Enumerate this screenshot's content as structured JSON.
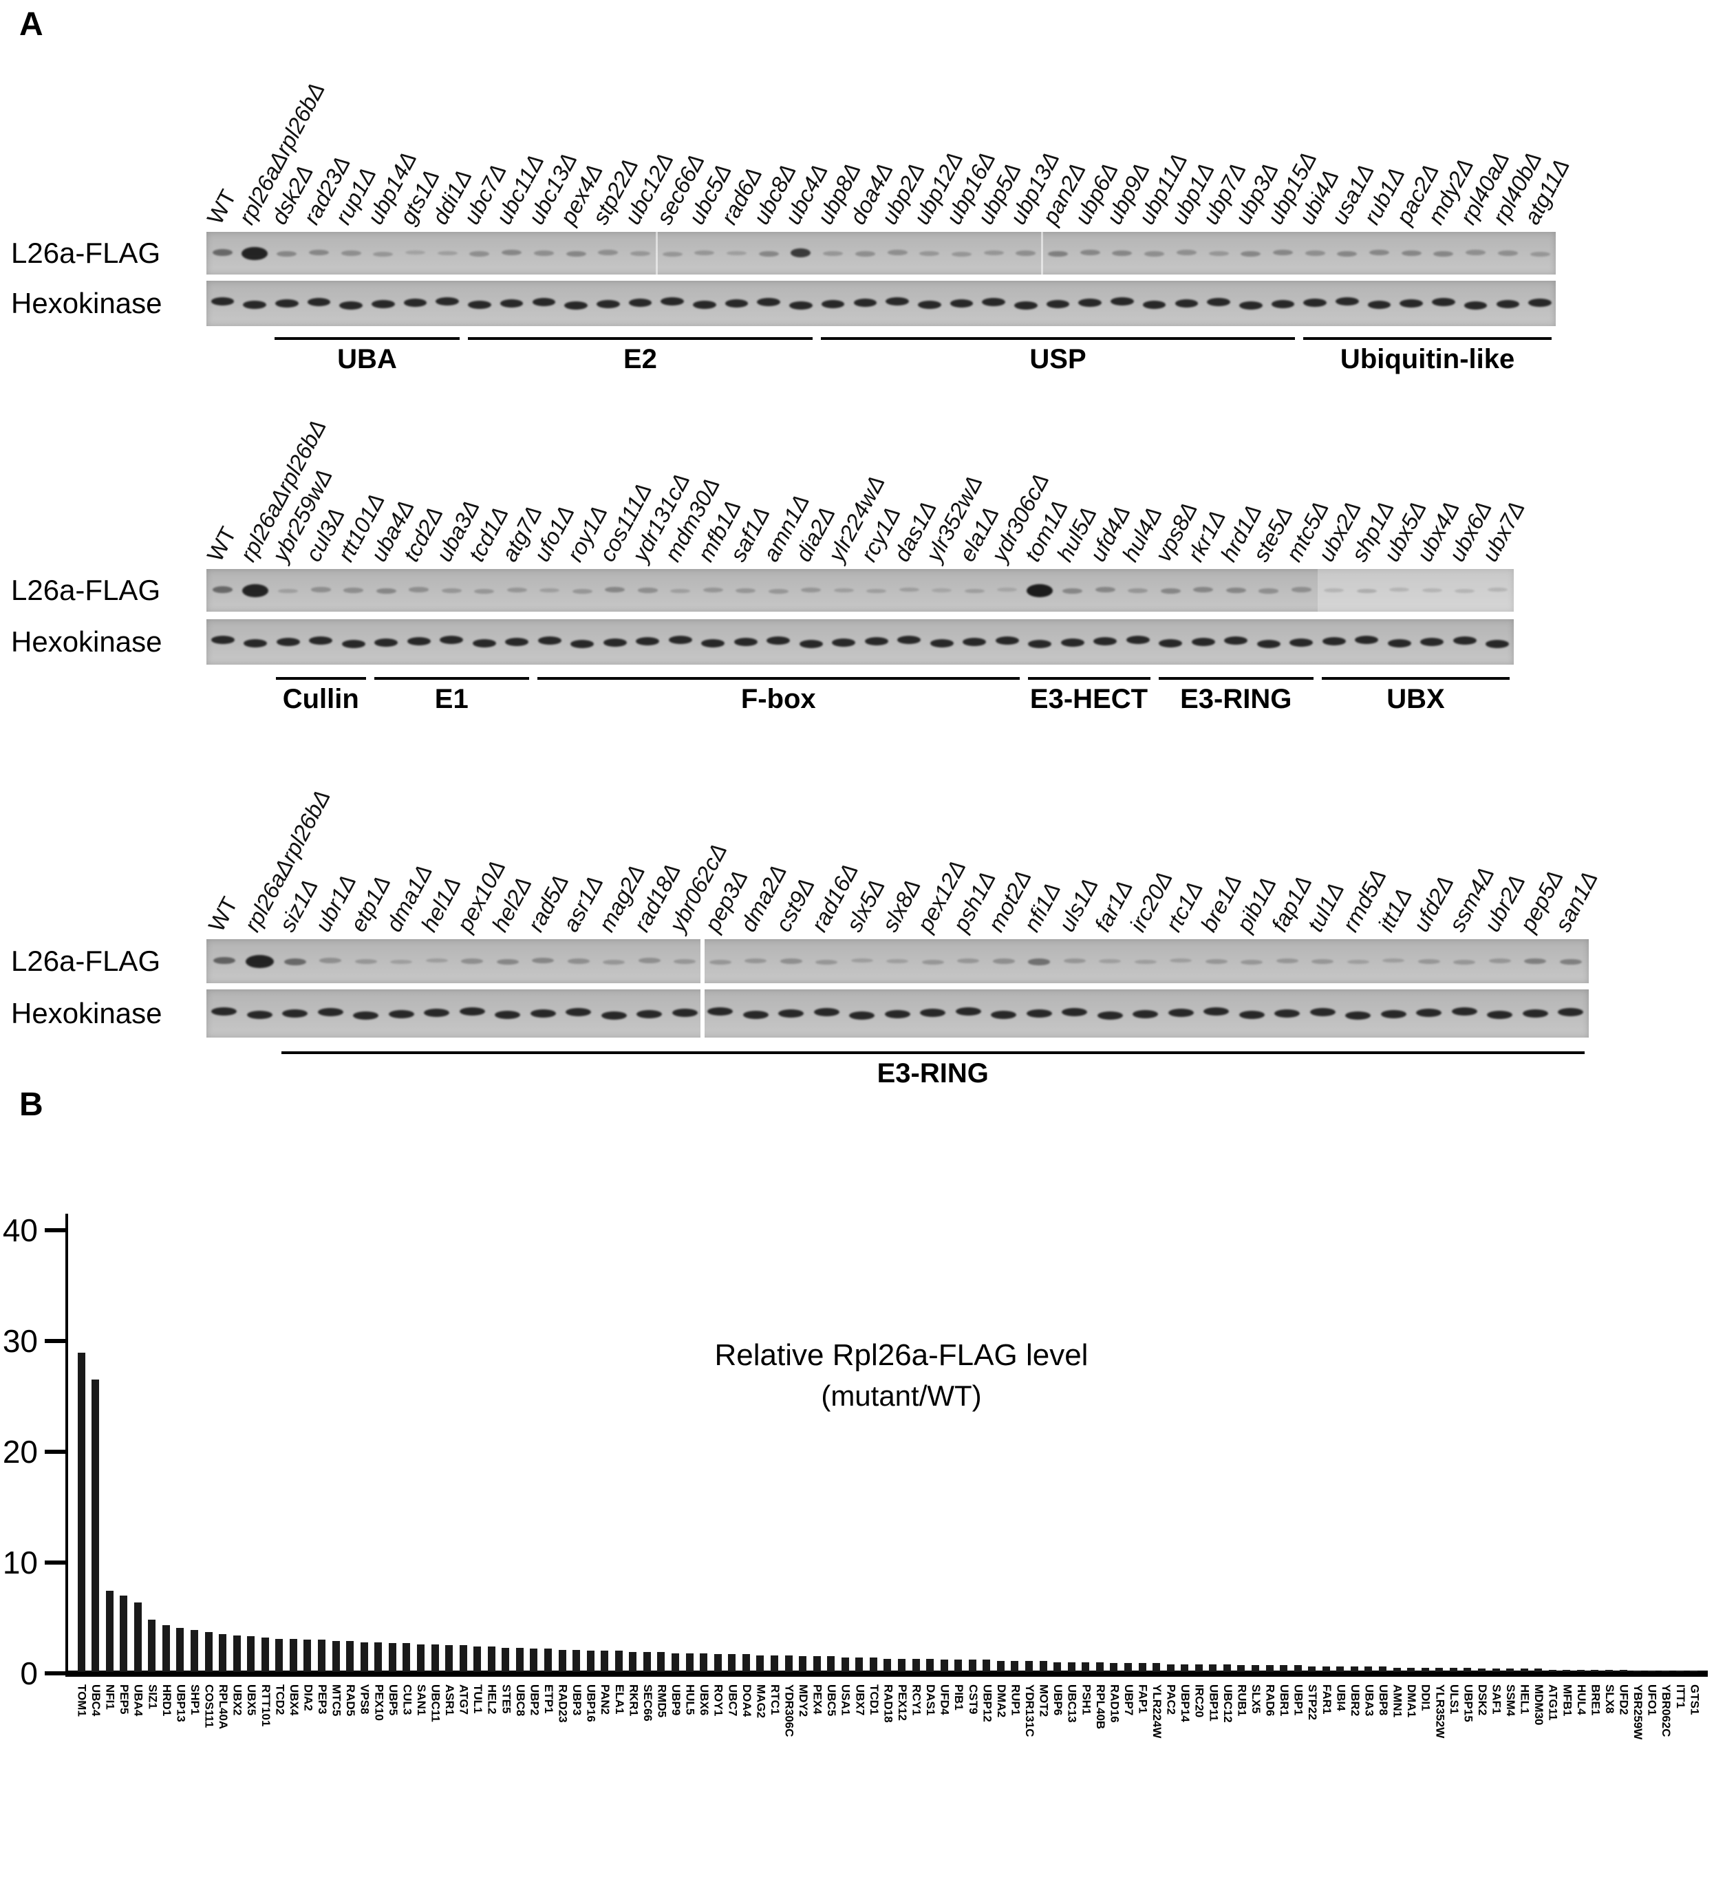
{
  "figure": {
    "panel_a_label": "A",
    "panel_b_label": "B"
  },
  "panel_a": {
    "row_label_l26a": "L26a-FLAG",
    "row_label_hexokinase": "Hexokinase",
    "blots": [
      {
        "lanes": [
          "WT",
          "rpl26aΔrpl26bΔ",
          "dsk2Δ",
          "rad23Δ",
          "rup1Δ",
          "ubp14Δ",
          "gts1Δ",
          "ddi1Δ",
          "ubc7Δ",
          "ubc11Δ",
          "ubc13Δ",
          "pex4Δ",
          "stp22Δ",
          "ubc12Δ",
          "sec66Δ",
          "ubc5Δ",
          "rad6Δ",
          "ubc8Δ",
          "ubc4Δ",
          "ubp8Δ",
          "doa4Δ",
          "ubp2Δ",
          "ubp12Δ",
          "ubp16Δ",
          "ubp5Δ",
          "ubp13Δ",
          "pan2Δ",
          "ubp6Δ",
          "ubp9Δ",
          "ubp11Δ",
          "ubp1Δ",
          "ubp7Δ",
          "ubp3Δ",
          "ubp15Δ",
          "ubi4Δ",
          "usa1Δ",
          "rub1Δ",
          "pac2Δ",
          "mdy2Δ",
          "rpl40aΔ",
          "rpl40bΔ",
          "atg11Δ"
        ],
        "l26a_band_intensities": [
          0.5,
          0.95,
          0.3,
          0.3,
          0.25,
          0.2,
          0.12,
          0.15,
          0.25,
          0.3,
          0.25,
          0.3,
          0.25,
          0.2,
          0.2,
          0.2,
          0.15,
          0.3,
          0.8,
          0.2,
          0.25,
          0.25,
          0.2,
          0.2,
          0.2,
          0.25,
          0.35,
          0.3,
          0.3,
          0.25,
          0.25,
          0.2,
          0.3,
          0.3,
          0.25,
          0.3,
          0.3,
          0.3,
          0.3,
          0.25,
          0.25,
          0.2
        ],
        "groups": [
          {
            "label": "UBA",
            "from": 2,
            "to": 7
          },
          {
            "label": "E2",
            "from": 8,
            "to": 18
          },
          {
            "label": "USP",
            "from": 19,
            "to": 33
          },
          {
            "label": "Ubiquitin-like",
            "from": 34,
            "to": 41
          }
        ]
      },
      {
        "lanes": [
          "WT",
          "rpl26aΔrpl26bΔ",
          "ybr259wΔ",
          "cul3Δ",
          "rtt101Δ",
          "uba4Δ",
          "tcd2Δ",
          "uba3Δ",
          "tcd1Δ",
          "atg7Δ",
          "ufo1Δ",
          "roy1Δ",
          "cos111Δ",
          "ydr131cΔ",
          "mdm30Δ",
          "mfb1Δ",
          "saf1Δ",
          "amn1Δ",
          "dia2Δ",
          "ylr224wΔ",
          "rcy1Δ",
          "das1Δ",
          "ylr352wΔ",
          "ela1Δ",
          "ydr306cΔ",
          "tom1Δ",
          "hul5Δ",
          "ufd4Δ",
          "hul4Δ",
          "vps8Δ",
          "rkr1Δ",
          "hrd1Δ",
          "ste5Δ",
          "mtc5Δ",
          "ubx2Δ",
          "shp1Δ",
          "ubx5Δ",
          "ubx4Δ",
          "ubx6Δ",
          "ubx7Δ"
        ],
        "l26a_band_intensities": [
          0.5,
          0.95,
          0.15,
          0.25,
          0.25,
          0.3,
          0.25,
          0.2,
          0.2,
          0.2,
          0.15,
          0.2,
          0.3,
          0.25,
          0.15,
          0.2,
          0.2,
          0.2,
          0.2,
          0.15,
          0.15,
          0.15,
          0.1,
          0.15,
          0.1,
          1.0,
          0.3,
          0.3,
          0.2,
          0.3,
          0.3,
          0.3,
          0.25,
          0.25,
          0.1,
          0.15,
          0.1,
          0.1,
          0.1,
          0.1
        ],
        "groups": [
          {
            "label": "Cullin",
            "from": 2,
            "to": 4
          },
          {
            "label": "E1",
            "from": 5,
            "to": 9
          },
          {
            "label": "F-box",
            "from": 10,
            "to": 24
          },
          {
            "label": "E3-HECT",
            "from": 25,
            "to": 28
          },
          {
            "label": "E3-RING",
            "from": 29,
            "to": 33
          },
          {
            "label": "UBX",
            "from": 34,
            "to": 39
          }
        ]
      },
      {
        "lanes": [
          "WT",
          "rpl26aΔrpl26bΔ",
          "siz1Δ",
          "ubr1Δ",
          "etp1Δ",
          "dma1Δ",
          "hel1Δ",
          "pex10Δ",
          "hel2Δ",
          "rad5Δ",
          "asr1Δ",
          "mag2Δ",
          "rad18Δ",
          "ybr062cΔ",
          "pep3Δ",
          "dma2Δ",
          "cst9Δ",
          "rad16Δ",
          "slx5Δ",
          "slx8Δ",
          "pex12Δ",
          "psh1Δ",
          "mot2Δ",
          "nfi1Δ",
          "uls1Δ",
          "far1Δ",
          "irc20Δ",
          "rtc1Δ",
          "bre1Δ",
          "pib1Δ",
          "fap1Δ",
          "tul1Δ",
          "rmd5Δ",
          "itt1Δ",
          "ufd2Δ",
          "ssm4Δ",
          "ubr2Δ",
          "pep5Δ",
          "san1Δ"
        ],
        "l26a_band_intensities": [
          0.55,
          0.95,
          0.5,
          0.25,
          0.2,
          0.15,
          0.15,
          0.25,
          0.3,
          0.3,
          0.25,
          0.2,
          0.25,
          0.2,
          0.2,
          0.2,
          0.25,
          0.2,
          0.15,
          0.15,
          0.2,
          0.2,
          0.25,
          0.45,
          0.2,
          0.15,
          0.15,
          0.15,
          0.2,
          0.2,
          0.2,
          0.2,
          0.15,
          0.15,
          0.2,
          0.2,
          0.2,
          0.35,
          0.35
        ],
        "groups": [
          {
            "label": "E3-RING",
            "from": 2,
            "to": 38
          }
        ]
      }
    ]
  },
  "panel_b": {
    "title_line1": "Relative Rpl26a-FLAG level",
    "title_line2": "(mutant/WT)"
  },
  "chart_data": {
    "type": "bar",
    "title": "Relative Rpl26a-FLAG level (mutant/WT)",
    "xlabel": "",
    "ylabel": "",
    "ylim": [
      0,
      40
    ],
    "yticks": [
      0,
      10,
      20,
      30,
      40
    ],
    "grid": false,
    "legend_position": "none",
    "bar_color": "#1a1a1a",
    "categories": [
      "TOM1",
      "UBC4",
      "NFI1",
      "PEP5",
      "UBA4",
      "SIZ1",
      "HRD1",
      "UBP13",
      "SHP1",
      "COS111",
      "RPL40A",
      "UBX2",
      "UBX5",
      "RTT101",
      "TCD2",
      "UBX4",
      "DIA2",
      "PEP3",
      "MTC5",
      "RAD5",
      "VPS8",
      "PEX10",
      "UBP5",
      "CUL3",
      "SAN1",
      "UBC11",
      "ASR1",
      "ATG7",
      "TUL1",
      "HEL2",
      "STE5",
      "UBC8",
      "UBP2",
      "ETP1",
      "RAD23",
      "UBP3",
      "UBP16",
      "PAN2",
      "ELA1",
      "RKR1",
      "SEC66",
      "RMD5",
      "UBP9",
      "HUL5",
      "UBX6",
      "ROY1",
      "UBC7",
      "DOA4",
      "MAG2",
      "RTC1",
      "YDR306C",
      "MDY2",
      "PEX4",
      "UBC5",
      "USA1",
      "UBX7",
      "TCD1",
      "RAD18",
      "PEX12",
      "RCY1",
      "DAS1",
      "UFD4",
      "PIB1",
      "CST9",
      "UBP12",
      "DMA2",
      "RUP1",
      "YDR131C",
      "MOT2",
      "UBP6",
      "UBC13",
      "PSH1",
      "RPL40B",
      "RAD16",
      "UBP7",
      "FAP1",
      "YLR224W",
      "PAC2",
      "UBP14",
      "IRC20",
      "UBP11",
      "UBC12",
      "RUB1",
      "SLX5",
      "RAD6",
      "UBR1",
      "UBP1",
      "STP22",
      "FAR1",
      "UBI4",
      "UBR2",
      "UBA3",
      "UBP8",
      "AMN1",
      "DMA1",
      "DDI1",
      "YLR352W",
      "ULS1",
      "UBP15",
      "DSK2",
      "SAF1",
      "SSM4",
      "HEL1",
      "MDM30",
      "ATG11",
      "MFB1",
      "HUL4",
      "BRE1",
      "SLX8",
      "UFD2",
      "YBR259W",
      "UFO1",
      "YBR062C",
      "ITT1",
      "GTS1"
    ],
    "values": [
      28.8,
      26.4,
      7.3,
      6.9,
      6.3,
      4.7,
      4.2,
      4.0,
      3.8,
      3.6,
      3.4,
      3.3,
      3.2,
      3.1,
      3.0,
      3.0,
      2.9,
      2.9,
      2.8,
      2.8,
      2.7,
      2.7,
      2.6,
      2.6,
      2.5,
      2.5,
      2.4,
      2.4,
      2.3,
      2.3,
      2.2,
      2.2,
      2.1,
      2.1,
      2.0,
      2.0,
      1.9,
      1.9,
      1.9,
      1.8,
      1.8,
      1.8,
      1.7,
      1.7,
      1.7,
      1.6,
      1.6,
      1.6,
      1.5,
      1.5,
      1.5,
      1.4,
      1.4,
      1.4,
      1.3,
      1.3,
      1.3,
      1.2,
      1.2,
      1.2,
      1.2,
      1.1,
      1.1,
      1.1,
      1.1,
      1.0,
      1.0,
      1.0,
      1.0,
      0.9,
      0.9,
      0.9,
      0.9,
      0.8,
      0.8,
      0.8,
      0.8,
      0.7,
      0.7,
      0.7,
      0.7,
      0.7,
      0.6,
      0.6,
      0.6,
      0.6,
      0.6,
      0.5,
      0.5,
      0.5,
      0.5,
      0.5,
      0.5,
      0.4,
      0.4,
      0.4,
      0.4,
      0.4,
      0.4,
      0.3,
      0.3,
      0.3,
      0.3,
      0.3,
      0.2,
      0.2,
      0.2,
      0.2,
      0.2,
      0.2,
      0.1,
      0.1,
      0.1,
      0.1,
      0.1
    ]
  }
}
